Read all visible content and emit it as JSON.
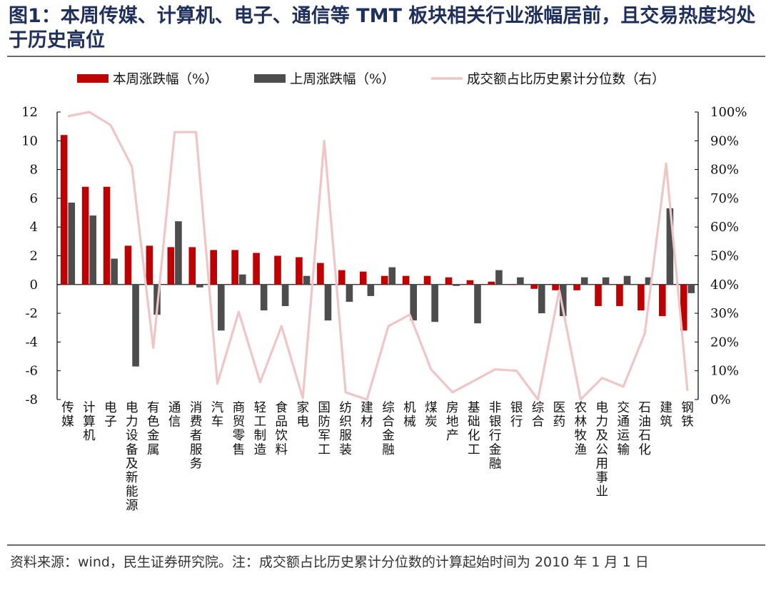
{
  "title": "图1：本周传媒、计算机、电子、通信等 TMT 板块相关行业涨幅居前，且交易热度均处于历史高位",
  "source": "资料来源：wind，民生证券研究院。注：成交额占比历史累计分位数的计算起始时间为 2010 年 1 月 1 日",
  "chart_data": {
    "type": "bar",
    "categories": [
      "传媒",
      "计算机",
      "电子",
      "电力设备及新能源",
      "有色金属",
      "通信",
      "消费者服务",
      "汽车",
      "商贸零售",
      "轻工制造",
      "食品饮料",
      "家电",
      "国防军工",
      "纺织服装",
      "建材",
      "综合金融",
      "机械",
      "煤炭",
      "房地产",
      "基础化工",
      "非银行金融",
      "银行",
      "综合",
      "医药",
      "农林牧渔",
      "电力及公用事业",
      "交通运输",
      "石油石化",
      "建筑",
      "钢铁"
    ],
    "series": [
      {
        "name": "本周涨跌幅（%）",
        "axis": "left",
        "color": "#c00000",
        "values": [
          10.4,
          6.8,
          6.8,
          2.7,
          2.7,
          2.6,
          2.6,
          2.4,
          2.4,
          2.2,
          2.0,
          1.9,
          1.5,
          1.0,
          0.9,
          0.6,
          0.6,
          0.6,
          0.5,
          0.3,
          0.2,
          0.0,
          -0.3,
          -0.4,
          -0.4,
          -1.5,
          -1.5,
          -1.8,
          -2.2,
          -3.2
        ]
      },
      {
        "name": "上周涨跌幅（%）",
        "axis": "left",
        "color": "#4d4d4d",
        "values": [
          5.7,
          4.8,
          1.8,
          -5.7,
          -2.1,
          4.4,
          -0.2,
          -3.2,
          0.7,
          -1.8,
          -1.5,
          0.6,
          -2.5,
          -1.2,
          -0.8,
          1.2,
          -2.5,
          -2.6,
          -0.1,
          -2.7,
          1.0,
          0.5,
          -2.0,
          -2.2,
          0.5,
          0.5,
          0.6,
          0.5,
          5.3,
          -0.6
        ]
      },
      {
        "name": "成交额占比历史累计分位数（右）",
        "type": "line",
        "axis": "right",
        "color": "#efc5c5",
        "values": [
          98.5,
          100,
          95.5,
          81,
          18,
          93,
          93,
          5.5,
          30.5,
          6,
          25.5,
          0.5,
          90,
          2.5,
          0,
          25.5,
          29.5,
          10.5,
          2.5,
          6.5,
          10.5,
          10,
          0,
          38,
          0,
          7.5,
          4.5,
          23,
          82,
          3
        ]
      }
    ],
    "ylim": [
      -8,
      12
    ],
    "yticks": [
      "12",
      "10",
      "8",
      "6",
      "4",
      "2",
      "0",
      "-2",
      "-4",
      "-6",
      "-8"
    ],
    "ylim_right": [
      0,
      100
    ],
    "yticks_right": [
      "100%",
      "90%",
      "80%",
      "70%",
      "60%",
      "50%",
      "40%",
      "30%",
      "20%",
      "10%",
      "0%"
    ],
    "legend_position": "top",
    "grid": false
  }
}
